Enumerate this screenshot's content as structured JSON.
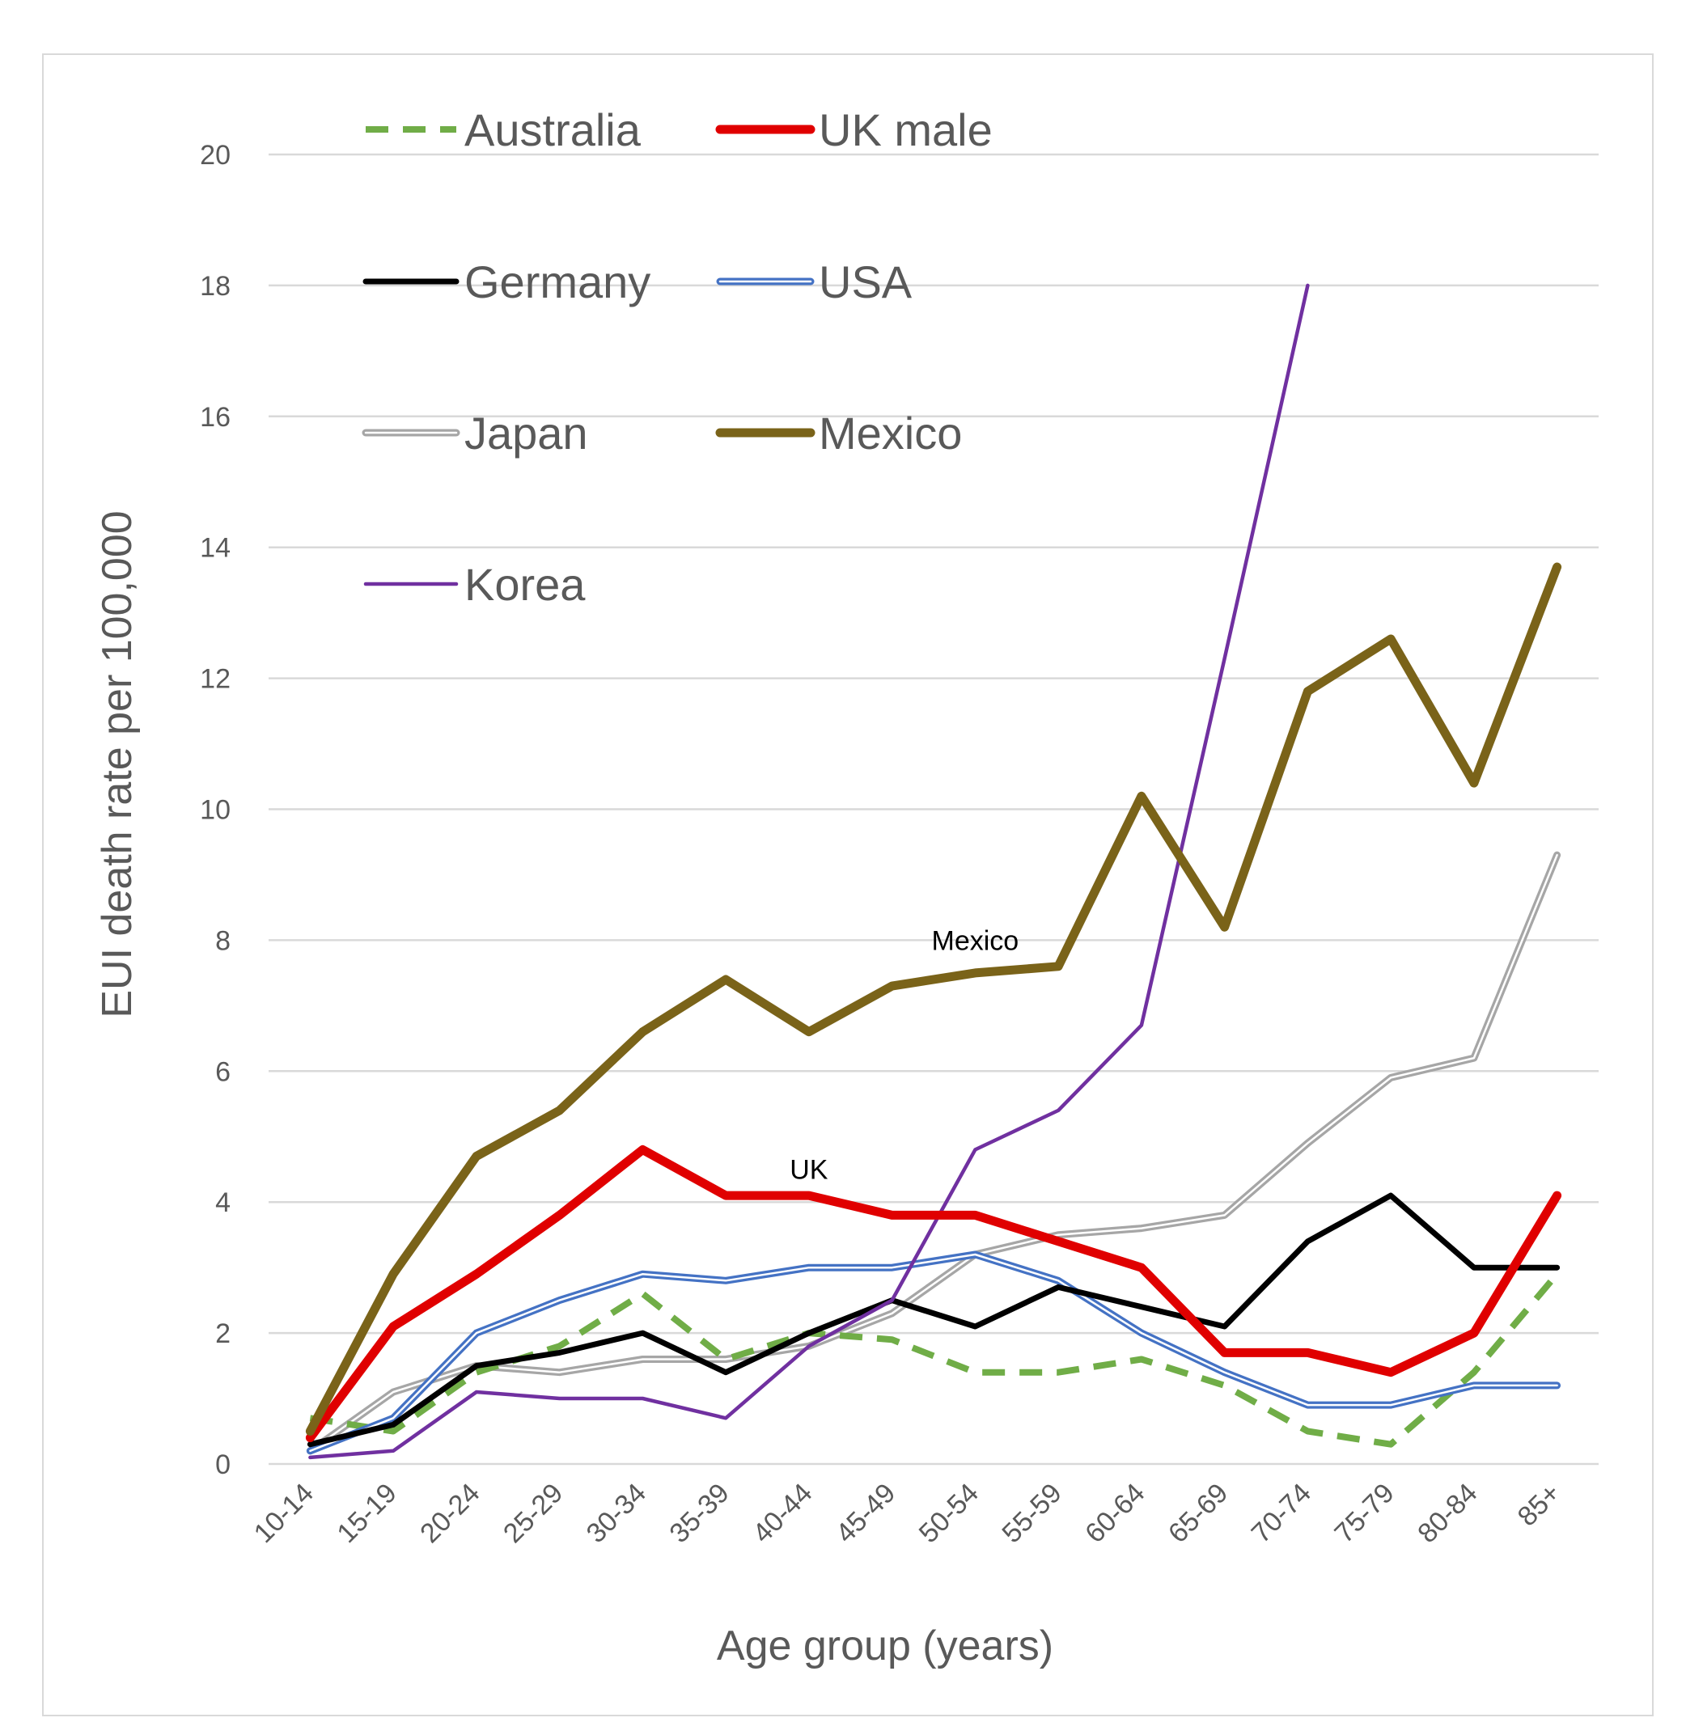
{
  "chart_data": {
    "type": "line",
    "xlabel": "Age group  (years)",
    "ylabel": "EUI death rate per 100,000",
    "ylim": [
      0,
      20
    ],
    "yticks": [
      0,
      2,
      4,
      6,
      8,
      10,
      12,
      14,
      16,
      18,
      20
    ],
    "grid": "horizontal",
    "legend_position": "top-left",
    "categories": [
      "10-14",
      "15-19",
      "20-24",
      "25-29",
      "30-34",
      "35-39",
      "40-44",
      "45-49",
      "50-54",
      "55-59",
      "60-64",
      "65-69",
      "70-74",
      "75-79",
      "80-84",
      "85+"
    ],
    "series": [
      {
        "name": "Australia",
        "color": "#70ad47",
        "style": "dashed",
        "values": [
          0.7,
          0.5,
          1.4,
          1.8,
          2.6,
          1.6,
          2.0,
          1.9,
          1.4,
          1.4,
          1.6,
          1.2,
          0.5,
          0.3,
          1.4,
          2.9
        ]
      },
      {
        "name": "UK male",
        "color": "#e00000",
        "style": "thick",
        "values": [
          0.4,
          2.1,
          2.9,
          3.8,
          4.8,
          4.1,
          4.1,
          3.8,
          3.8,
          3.4,
          3.0,
          1.7,
          1.7,
          1.4,
          2.0,
          4.1
        ]
      },
      {
        "name": "Germany",
        "color": "#000000",
        "style": "solid",
        "values": [
          0.3,
          0.6,
          1.5,
          1.7,
          2.0,
          1.4,
          2.0,
          2.5,
          2.1,
          2.7,
          2.4,
          2.1,
          3.4,
          4.1,
          3.0,
          3.0
        ]
      },
      {
        "name": "USA",
        "color": "#4472c4",
        "style": "double",
        "values": [
          0.2,
          0.7,
          2.0,
          2.5,
          2.9,
          2.8,
          3.0,
          3.0,
          3.2,
          2.8,
          2.0,
          1.4,
          0.9,
          0.9,
          1.2,
          1.2
        ]
      },
      {
        "name": "Japan",
        "color": "#a6a6a6",
        "style": "double",
        "values": [
          0.2,
          1.1,
          1.5,
          1.4,
          1.6,
          1.6,
          1.8,
          2.3,
          3.2,
          3.5,
          3.6,
          3.8,
          4.9,
          5.9,
          6.2,
          9.3
        ]
      },
      {
        "name": "Mexico",
        "color": "#7a6319",
        "style": "thick",
        "values": [
          0.5,
          2.9,
          4.7,
          5.4,
          6.6,
          7.4,
          6.6,
          7.3,
          7.5,
          7.6,
          10.2,
          8.2,
          11.8,
          12.6,
          10.4,
          13.7
        ]
      },
      {
        "name": "Korea",
        "color": "#7030a0",
        "style": "thin",
        "values": [
          0.1,
          0.2,
          1.1,
          1.0,
          1.0,
          0.7,
          1.8,
          2.5,
          4.8,
          5.4,
          6.7,
          12.3,
          18.0,
          null,
          null,
          null
        ]
      }
    ],
    "annotations": [
      {
        "text": "Mexico",
        "x": "50-54",
        "y": 8.0
      },
      {
        "text": "UK",
        "x": "40-44",
        "y": 4.5
      }
    ]
  }
}
